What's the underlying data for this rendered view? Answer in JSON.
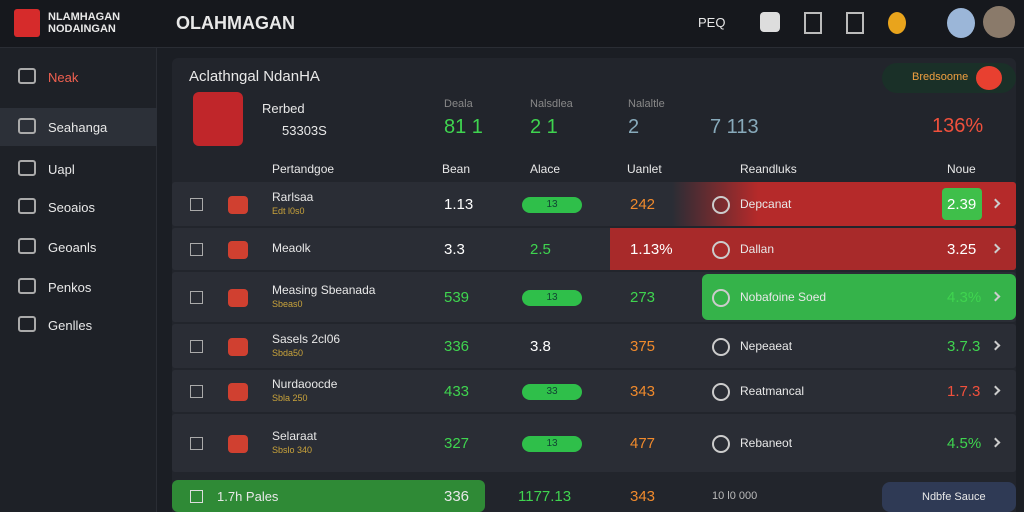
{
  "header": {
    "logo_lines": [
      "NLAMHAGAN",
      "NODAINGAN"
    ],
    "title": "OLAHMAGAN",
    "search": "PEQ"
  },
  "sidebar": [
    "Neak",
    "Seahanga",
    "Uapl",
    "Seoaios",
    "Geoanls",
    "Penkos",
    "Genlles"
  ],
  "panel": {
    "title": "Aclathngal NdanHA",
    "team_name": "Rerbed",
    "team_code": "53303S",
    "button": "Bredsoome",
    "stats": [
      {
        "label": "Deala",
        "value": "81 1"
      },
      {
        "label": "Nalsdlea",
        "value": "2 1"
      },
      {
        "label": "Nalaltle",
        "value": "2"
      },
      {
        "label": "",
        "value": "7 113"
      }
    ],
    "percent": "136%"
  },
  "table": {
    "headers": [
      "Pertandgoe",
      "Bean",
      "Alace",
      "Uanlet",
      "Reandluks",
      "Noue"
    ],
    "rows": [
      {
        "name": "Rarlsaa",
        "sub": "Edt l0s0",
        "c1": "1.13",
        "c2": "13",
        "c3": "242",
        "team": "Depcanat",
        "odds": "2.39"
      },
      {
        "name": "Meaolk",
        "sub": "",
        "c1": "3.3",
        "c2": "2.5",
        "c3": "1.13%",
        "team": "Dallan",
        "odds": "3.25"
      },
      {
        "name": "Measing Sbeanada",
        "sub": "Sbeas0",
        "c1": "539",
        "c2": "13",
        "c3": "273",
        "team": "Nobafoine Soed",
        "odds": "4.3%"
      },
      {
        "name": "Sasels 2cl06",
        "sub": "Sbda50",
        "c1": "336",
        "c2": "3.8",
        "c3": "375",
        "team": "Nepeaeat",
        "odds": "3.7.3"
      },
      {
        "name": "Nurdaoocde",
        "sub": "Sbla 250",
        "c1": "433",
        "c2": "33",
        "c3": "343",
        "team": "Reatmancal",
        "odds": "1.7.3"
      },
      {
        "name": "Selaraat",
        "sub": "Sbslo 340",
        "c1": "327",
        "c2": "13",
        "c3": "477",
        "team": "Rebaneot",
        "odds": "4.5%"
      }
    ],
    "footer": {
      "name": "1.7h Pales",
      "c1": "336",
      "c2": "1177.13",
      "c3": "343",
      "c4": "10 l0 000",
      "button": "Ndbfe Sauce"
    }
  }
}
